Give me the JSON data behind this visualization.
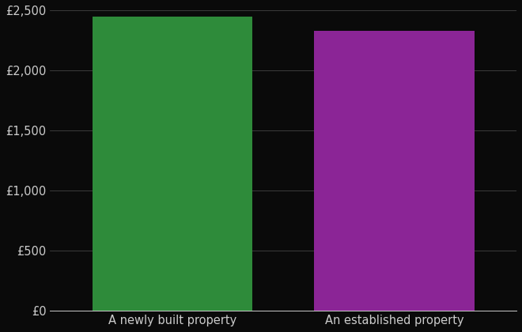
{
  "categories": [
    "A newly built property",
    "An established property"
  ],
  "values": [
    2450,
    2330
  ],
  "bar_colors": [
    "#2e8b3a",
    "#8b2596"
  ],
  "background_color": "#0a0a0a",
  "text_color": "#cccccc",
  "grid_color": "#444444",
  "ylim": [
    0,
    2500
  ],
  "yticks": [
    0,
    500,
    1000,
    1500,
    2000,
    2500
  ],
  "ytick_labels": [
    "£0",
    "£500",
    "£1,000",
    "£1,500",
    "£2,000",
    "£2,500"
  ],
  "bar_width": 0.72,
  "x_positions": [
    1,
    2
  ],
  "xlim": [
    0.45,
    2.55
  ],
  "tick_fontsize": 10.5,
  "xlabel_fontsize": 10.5
}
